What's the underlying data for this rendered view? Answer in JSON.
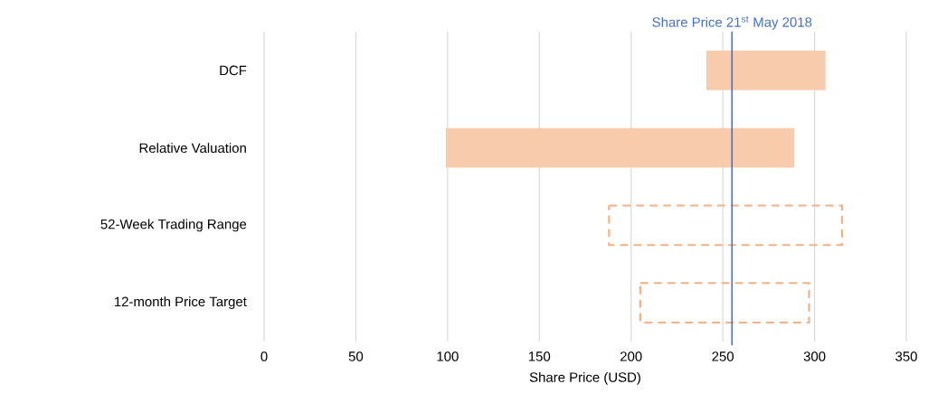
{
  "chart_data": {
    "type": "bar",
    "orientation": "horizontal",
    "categories": [
      "DCF",
      "Relative Valuation",
      "52-Week Trading Range",
      "12-month Price Target"
    ],
    "series": [
      {
        "color": "#f8cbad",
        "base": [
          241,
          99,
          null,
          null
        ],
        "values": [
          65,
          190,
          null,
          null
        ]
      },
      {
        "color": "#f4b183",
        "line_style": "dashed",
        "base": [
          null,
          null,
          188,
          205
        ],
        "values": [
          null,
          null,
          127,
          92
        ]
      }
    ],
    "xlabel": "Share Price (USD)",
    "xlim": [
      0,
      350
    ],
    "xticks": [
      0,
      50,
      100,
      150,
      200,
      250,
      300,
      350
    ],
    "grid": "x",
    "ref_lines": [
      {
        "axis": "x",
        "value": 255,
        "label": "Share Price 21$^{st}$ May 2018",
        "color": "#4472c4"
      }
    ]
  }
}
